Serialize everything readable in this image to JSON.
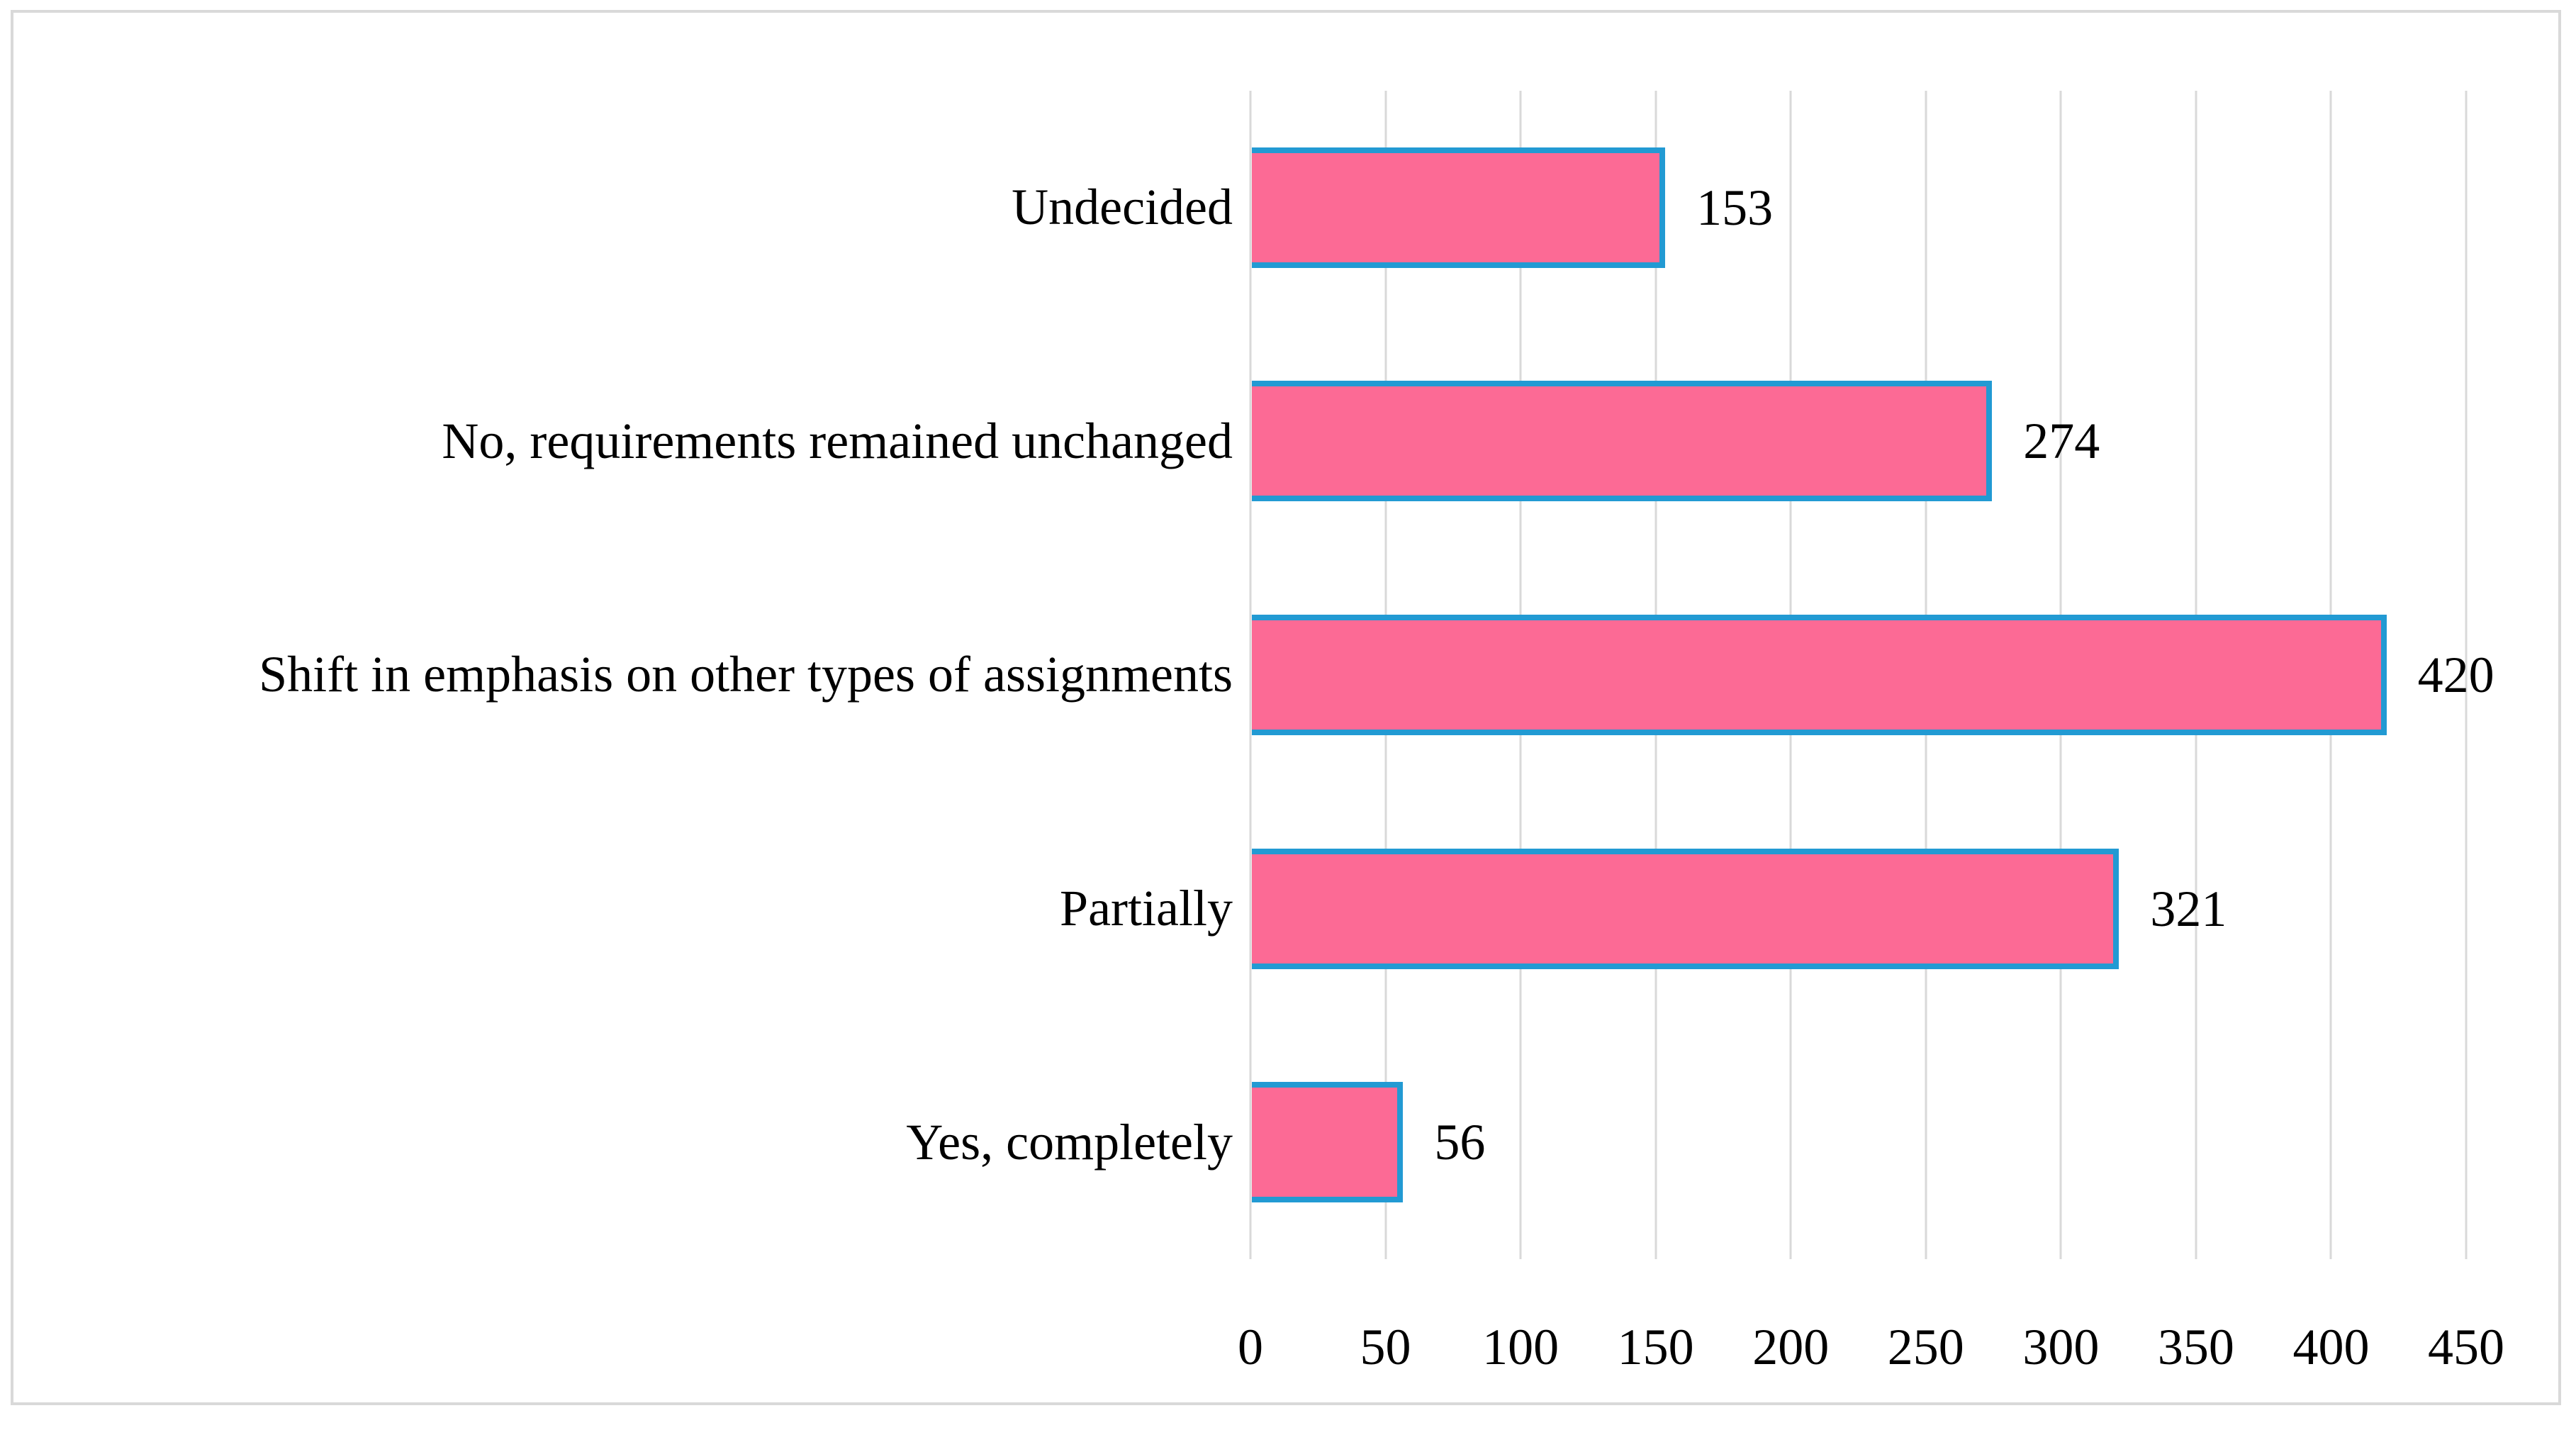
{
  "chart_data": {
    "type": "bar",
    "orientation": "horizontal",
    "title": "",
    "xlabel": "",
    "ylabel": "",
    "categories": [
      "Undecided",
      "No, requirements remained unchanged",
      "Shift in emphasis on other types of assignments",
      "Partially",
      "Yes, completely"
    ],
    "values": [
      153,
      274,
      420,
      321,
      56
    ],
    "data_labels": [
      "153",
      "274",
      "420",
      "321",
      "56"
    ],
    "xlim": [
      0,
      450
    ],
    "x_ticks": [
      0,
      50,
      100,
      150,
      200,
      250,
      300,
      350,
      400,
      450
    ],
    "x_tick_labels": [
      "0",
      "50",
      "100",
      "150",
      "200",
      "250",
      "300",
      "350",
      "400",
      "450"
    ],
    "grid": true,
    "legend": false,
    "colors": {
      "bar_fill": "#FC6A95",
      "bar_border": "#229AD3",
      "gridline": "#D9D9D9",
      "frame_border": "#D9D9D9",
      "text": "#000000"
    }
  }
}
